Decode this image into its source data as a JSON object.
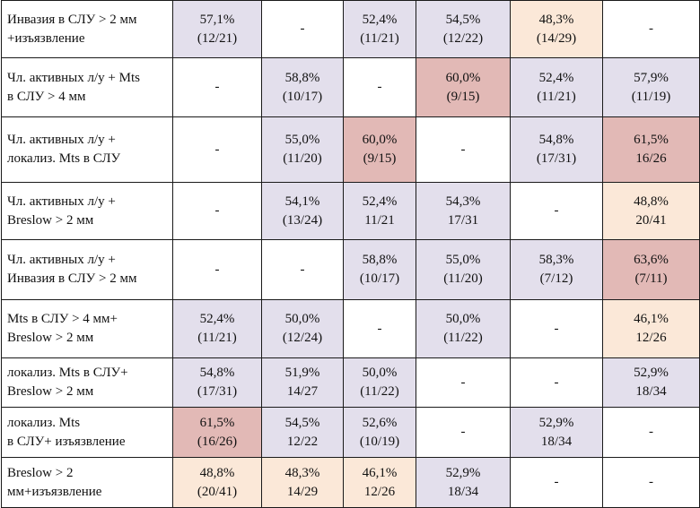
{
  "colors": {
    "lav": "#e3dfec",
    "peach": "#fbe8d8",
    "pink": "#e2b9b6",
    "none": "#ffffff"
  },
  "rows": [
    {
      "label": [
        "Инвазия в СЛУ > 2 мм",
        "+изъязвление"
      ],
      "cells": [
        {
          "lines": [
            "57,1%",
            "(12/21)"
          ],
          "color": "lav"
        },
        {
          "lines": [
            "-"
          ],
          "color": "none"
        },
        {
          "lines": [
            "52,4%",
            "(11/21)"
          ],
          "color": "lav"
        },
        {
          "lines": [
            "54,5%",
            "(12/22)"
          ],
          "color": "lav"
        },
        {
          "lines": [
            "48,3%",
            "(14/29)"
          ],
          "color": "peach"
        },
        {
          "lines": [
            "-"
          ],
          "color": "none"
        }
      ]
    },
    {
      "label": [
        "Чл. активных л/у + Mts",
        "в СЛУ > 4 мм"
      ],
      "cells": [
        {
          "lines": [
            "-"
          ],
          "color": "none"
        },
        {
          "lines": [
            "58,8%",
            "(10/17)"
          ],
          "color": "lav"
        },
        {
          "lines": [
            "-"
          ],
          "color": "none"
        },
        {
          "lines": [
            "60,0%",
            "(9/15)"
          ],
          "color": "pink"
        },
        {
          "lines": [
            "52,4%",
            "(11/21)"
          ],
          "color": "lav"
        },
        {
          "lines": [
            "57,9%",
            "(11/19)"
          ],
          "color": "lav"
        }
      ]
    },
    {
      "label": [
        "Чл. активных л/у +",
        "локализ. Mts в СЛУ"
      ],
      "cells": [
        {
          "lines": [
            "-"
          ],
          "color": "none"
        },
        {
          "lines": [
            "55,0%",
            "(11/20)"
          ],
          "color": "lav"
        },
        {
          "lines": [
            "60,0%",
            "(9/15)"
          ],
          "color": "pink"
        },
        {
          "lines": [
            "-"
          ],
          "color": "none"
        },
        {
          "lines": [
            "54,8%",
            "(17/31)"
          ],
          "color": "lav"
        },
        {
          "lines": [
            "61,5%",
            "16/26"
          ],
          "color": "pink"
        }
      ]
    },
    {
      "label": [
        "Чл. активных л/у +",
        "Breslow > 2 мм"
      ],
      "cells": [
        {
          "lines": [
            "-"
          ],
          "color": "none"
        },
        {
          "lines": [
            "54,1%",
            "(13/24)"
          ],
          "color": "lav"
        },
        {
          "lines": [
            "52,4%",
            "11/21"
          ],
          "color": "lav"
        },
        {
          "lines": [
            "54,3%",
            "17/31"
          ],
          "color": "lav"
        },
        {
          "lines": [
            "-"
          ],
          "color": "none"
        },
        {
          "lines": [
            "48,8%",
            "20/41"
          ],
          "color": "peach"
        }
      ]
    },
    {
      "label": [
        "Чл. активных л/у +",
        "Инвазия в СЛУ > 2 мм"
      ],
      "cells": [
        {
          "lines": [
            "-"
          ],
          "color": "none"
        },
        {
          "lines": [
            "-"
          ],
          "color": "none"
        },
        {
          "lines": [
            "58,8%",
            "(10/17)"
          ],
          "color": "lav"
        },
        {
          "lines": [
            "55,0%",
            "(11/20)"
          ],
          "color": "lav"
        },
        {
          "lines": [
            "58,3%",
            "(7/12)"
          ],
          "color": "lav"
        },
        {
          "lines": [
            "63,6%",
            "(7/11)"
          ],
          "color": "pink"
        }
      ]
    },
    {
      "label": [
        "Mts в СЛУ > 4 мм+",
        "Breslow > 2 мм"
      ],
      "cells": [
        {
          "lines": [
            "52,4%",
            "(11/21)"
          ],
          "color": "lav"
        },
        {
          "lines": [
            "50,0%",
            "(12/24)"
          ],
          "color": "lav"
        },
        {
          "lines": [
            "-"
          ],
          "color": "none"
        },
        {
          "lines": [
            "50,0%",
            "(11/22)"
          ],
          "color": "lav"
        },
        {
          "lines": [
            "-"
          ],
          "color": "none"
        },
        {
          "lines": [
            "46,1%",
            "12/26"
          ],
          "color": "peach"
        }
      ]
    },
    {
      "label": [
        "локализ. Mts в СЛУ+",
        "Breslow > 2 мм"
      ],
      "cells": [
        {
          "lines": [
            "54,8%",
            "(17/31)"
          ],
          "color": "lav"
        },
        {
          "lines": [
            "51,9%",
            "14/27"
          ],
          "color": "lav"
        },
        {
          "lines": [
            "50,0%",
            "(11/22)"
          ],
          "color": "lav"
        },
        {
          "lines": [
            "-"
          ],
          "color": "none"
        },
        {
          "lines": [
            "-"
          ],
          "color": "none"
        },
        {
          "lines": [
            "52,9%",
            "18/34"
          ],
          "color": "lav"
        }
      ]
    },
    {
      "label": [
        "локализ. Mts",
        "в СЛУ+ изъязвление"
      ],
      "cells": [
        {
          "lines": [
            "61,5%",
            "(16/26)"
          ],
          "color": "pink"
        },
        {
          "lines": [
            "54,5%",
            "12/22"
          ],
          "color": "lav"
        },
        {
          "lines": [
            "52,6%",
            "(10/19)"
          ],
          "color": "lav"
        },
        {
          "lines": [
            "-"
          ],
          "color": "none"
        },
        {
          "lines": [
            "52,9%",
            "18/34"
          ],
          "color": "lav"
        },
        {
          "lines": [
            "-"
          ],
          "color": "none"
        }
      ]
    },
    {
      "label": [
        "Breslow > 2",
        "мм+изъязвление"
      ],
      "cells": [
        {
          "lines": [
            "48,8%",
            "(20/41)"
          ],
          "color": "peach"
        },
        {
          "lines": [
            "48,3%",
            "14/29"
          ],
          "color": "peach"
        },
        {
          "lines": [
            "46,1%",
            "12/26"
          ],
          "color": "peach"
        },
        {
          "lines": [
            "52,9%",
            "18/34"
          ],
          "color": "lav"
        },
        {
          "lines": [
            "-"
          ],
          "color": "none"
        },
        {
          "lines": [
            "-"
          ],
          "color": "none"
        }
      ]
    }
  ]
}
